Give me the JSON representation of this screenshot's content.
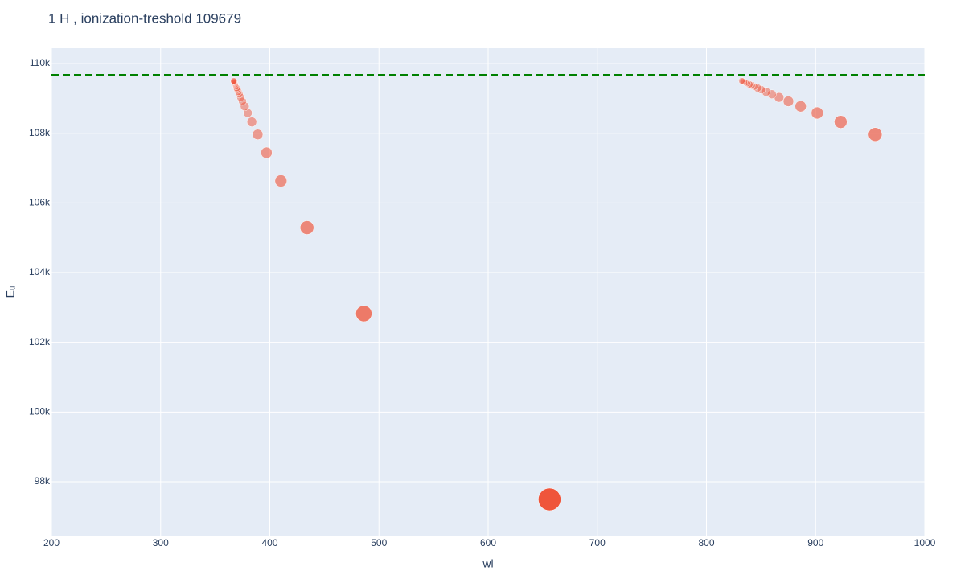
{
  "chart_data": {
    "type": "scatter",
    "title": "1 H , ionization-treshold 109679",
    "x_label": "wl",
    "y_label": "Eᵤ",
    "color": "#EF553B",
    "threshold": 109679,
    "threshold_color": "#008000",
    "x": [
      656.28,
      486.13,
      434.05,
      410.17,
      397.01,
      388.91,
      383.54,
      379.79,
      377.06,
      375.02,
      373.44,
      372.19,
      371.2,
      370.39,
      369.72,
      369.16,
      368.68,
      368.28,
      367.94,
      367.64,
      367.38,
      367.15,
      366.95,
      954.6,
      922.95,
      901.5,
      886.3,
      875.1,
      866.5,
      859.9,
      854.6,
      850.3,
      846.8,
      843.8,
      841.4,
      839.3,
      837.5,
      835.9,
      834.6,
      833.4,
      832.4
    ],
    "values": [
      97492.2,
      102824.0,
      105291.6,
      106632.2,
      107440.4,
      107965.0,
      108324.7,
      108581.9,
      108772.3,
      108917.1,
      109029.8,
      109119.2,
      109191.3,
      109250.3,
      109299.3,
      109340.3,
      109375.0,
      109404.6,
      109430.1,
      109452.2,
      109471.4,
      109488.4,
      109503.3,
      107965.0,
      108324.7,
      108581.9,
      108772.3,
      108917.1,
      109029.8,
      109119.2,
      109191.3,
      109250.3,
      109299.3,
      109340.3,
      109375.0,
      109404.6,
      109430.1,
      109452.2,
      109471.4,
      109488.4,
      109503.3
    ],
    "sizes": [
      28,
      20,
      17,
      15,
      14,
      13,
      12,
      11,
      11,
      10,
      10,
      9,
      9,
      9,
      9,
      8,
      8,
      8,
      8,
      8,
      8,
      8,
      8,
      17,
      16,
      15,
      14,
      13,
      12,
      11,
      11,
      10,
      10,
      9,
      9,
      9,
      8,
      8,
      8,
      8,
      8
    ],
    "xlim": [
      200,
      1000
    ],
    "xticks": [
      200,
      300,
      400,
      500,
      600,
      700,
      800,
      900,
      1000
    ],
    "ylim": [
      96430,
      110440
    ],
    "yticks": [
      {
        "value": 98000,
        "label": "98k"
      },
      {
        "value": 100000,
        "label": "100k"
      },
      {
        "value": 102000,
        "label": "102k"
      },
      {
        "value": 104000,
        "label": "104k"
      },
      {
        "value": 106000,
        "label": "106k"
      },
      {
        "value": 108000,
        "label": "108k"
      },
      {
        "value": 110000,
        "label": "110k"
      }
    ],
    "grid": true
  }
}
